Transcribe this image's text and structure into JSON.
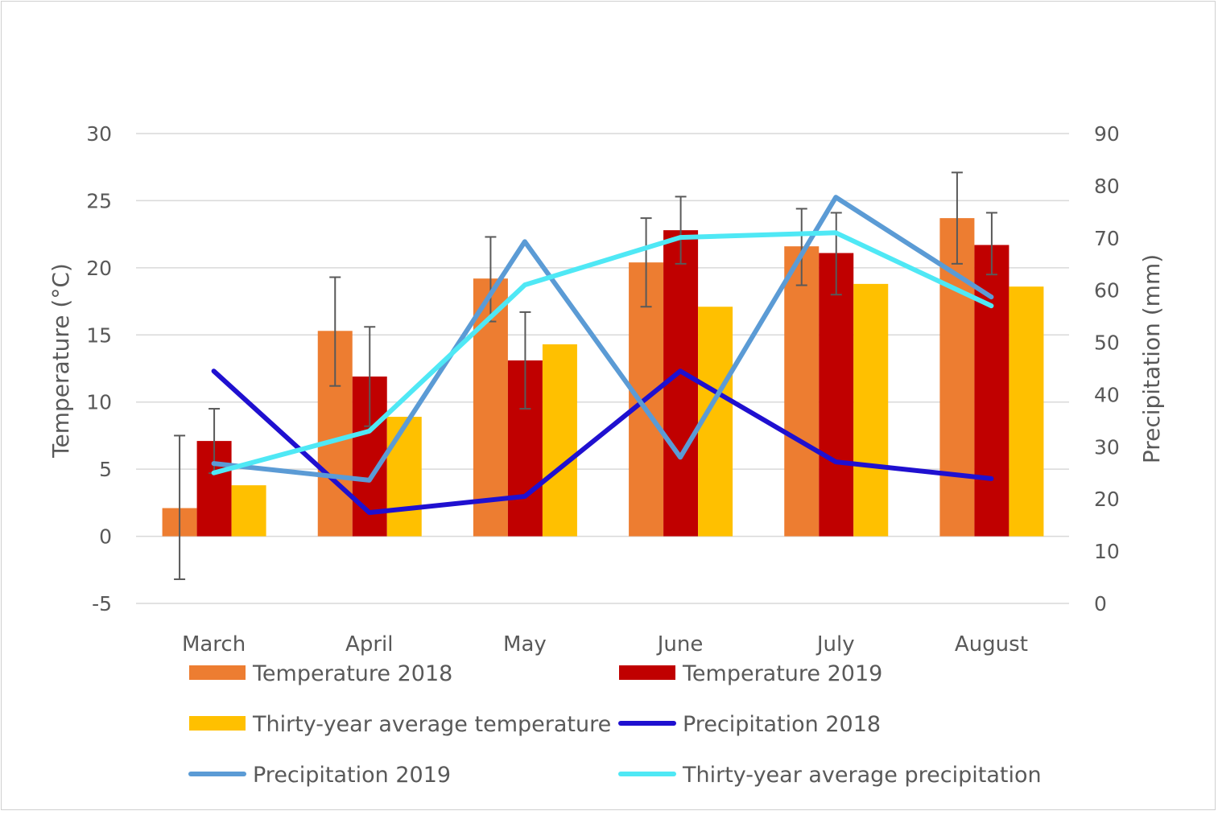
{
  "chart_data": {
    "type": "bar+line",
    "categories": [
      "March",
      "April",
      "May",
      "June",
      "July",
      "August"
    ],
    "left_axis": {
      "label": "Temperature (°C)",
      "range": [
        -5,
        30
      ],
      "ticks": [
        "-5",
        "0",
        "5",
        "10",
        "15",
        "20",
        "25",
        "30"
      ]
    },
    "right_axis": {
      "label": "Precipitation (mm)",
      "range": [
        0,
        90
      ],
      "ticks": [
        "0",
        "10",
        "20",
        "30",
        "40",
        "50",
        "60",
        "70",
        "80",
        "90"
      ]
    },
    "grid": true,
    "legend_placement": "bottom",
    "bar_series": [
      {
        "name": "Temperature 2018",
        "color": "#ED7D31",
        "values": [
          2.1,
          15.3,
          19.2,
          20.4,
          21.6,
          23.7
        ],
        "error_low": [
          -3.2,
          11.2,
          16.0,
          17.1,
          18.7,
          20.3
        ],
        "error_high": [
          7.5,
          19.3,
          22.3,
          23.7,
          24.4,
          27.1
        ]
      },
      {
        "name": "Temperature 2019",
        "color": "#C00000",
        "values": [
          7.1,
          11.9,
          13.1,
          22.8,
          21.1,
          21.7
        ],
        "error_low": [
          4.7,
          8.2,
          9.5,
          20.3,
          18.0,
          19.5
        ],
        "error_high": [
          9.5,
          15.6,
          16.7,
          25.3,
          24.1,
          24.1
        ]
      },
      {
        "name": "Thirty-year average temperature",
        "color": "#FFC000",
        "values": [
          3.8,
          8.9,
          14.3,
          17.1,
          18.8,
          18.6
        ]
      }
    ],
    "line_series": [
      {
        "name": "Precipitation 2018",
        "color": "#1F10D0",
        "values": [
          44.5,
          17.4,
          20.5,
          44.5,
          27.1,
          23.9
        ]
      },
      {
        "name": "Precipitation 2019",
        "color": "#5B9BD5",
        "values": [
          26.8,
          23.6,
          69.3,
          28.0,
          77.8,
          58.7
        ]
      },
      {
        "name": "Thirty-year average precipitation",
        "color": "#4FE8F5",
        "values": [
          25.0,
          33.0,
          61.0,
          70.1,
          71.0,
          57.0
        ]
      }
    ]
  }
}
